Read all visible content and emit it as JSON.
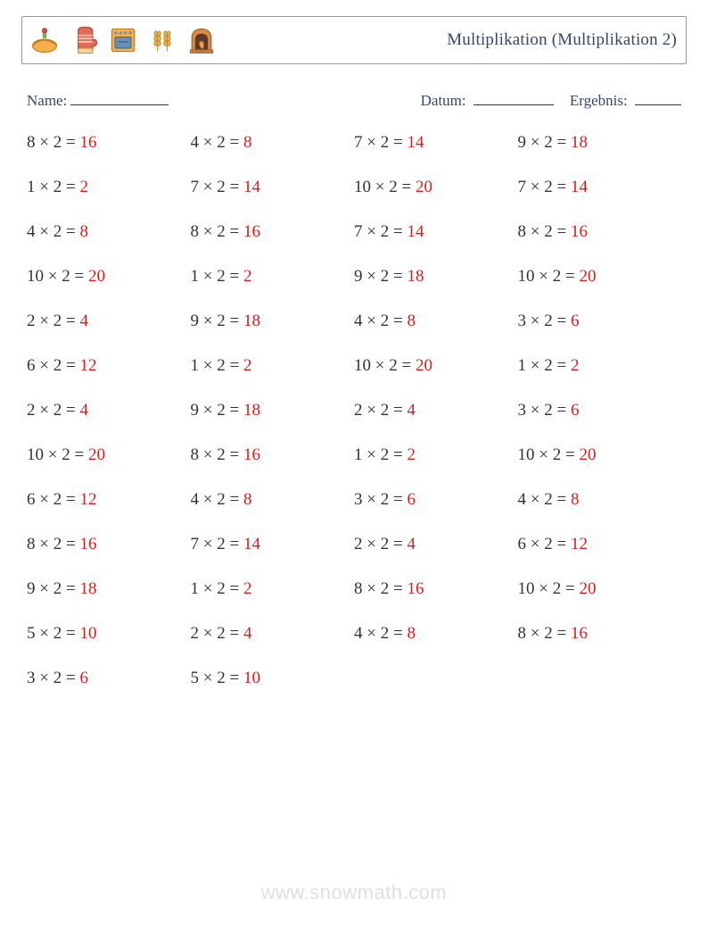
{
  "title": "Multiplikation (Multiplikation 2)",
  "labels": {
    "name": "Name:",
    "date": "Datum:",
    "result": "Ergebnis:"
  },
  "underline_widths": {
    "name": 110,
    "date": 90,
    "result": 52
  },
  "colors": {
    "text": "#333333",
    "title_text": "#324a67",
    "answer": "#d21f1f",
    "border": "#999999",
    "watermark": "rgba(120,120,120,0.24)"
  },
  "font_sizes": {
    "title": 19,
    "meta": 17,
    "problem": 19,
    "watermark": 22
  },
  "icons": [
    "pie-icon",
    "mitt-icon",
    "oven-icon",
    "wheat-icon",
    "fireplace-icon"
  ],
  "grid": {
    "columns": 4,
    "rows": 13,
    "row_gap": 28
  },
  "watermark": "www.snowmath.com",
  "problems": [
    {
      "a": 8,
      "b": 2,
      "ans": 16
    },
    {
      "a": 4,
      "b": 2,
      "ans": 8
    },
    {
      "a": 7,
      "b": 2,
      "ans": 14
    },
    {
      "a": 9,
      "b": 2,
      "ans": 18
    },
    {
      "a": 1,
      "b": 2,
      "ans": 2
    },
    {
      "a": 7,
      "b": 2,
      "ans": 14
    },
    {
      "a": 10,
      "b": 2,
      "ans": 20
    },
    {
      "a": 7,
      "b": 2,
      "ans": 14
    },
    {
      "a": 4,
      "b": 2,
      "ans": 8
    },
    {
      "a": 8,
      "b": 2,
      "ans": 16
    },
    {
      "a": 7,
      "b": 2,
      "ans": 14
    },
    {
      "a": 8,
      "b": 2,
      "ans": 16
    },
    {
      "a": 10,
      "b": 2,
      "ans": 20
    },
    {
      "a": 1,
      "b": 2,
      "ans": 2
    },
    {
      "a": 9,
      "b": 2,
      "ans": 18
    },
    {
      "a": 10,
      "b": 2,
      "ans": 20
    },
    {
      "a": 2,
      "b": 2,
      "ans": 4
    },
    {
      "a": 9,
      "b": 2,
      "ans": 18
    },
    {
      "a": 4,
      "b": 2,
      "ans": 8
    },
    {
      "a": 3,
      "b": 2,
      "ans": 6
    },
    {
      "a": 6,
      "b": 2,
      "ans": 12
    },
    {
      "a": 1,
      "b": 2,
      "ans": 2
    },
    {
      "a": 10,
      "b": 2,
      "ans": 20
    },
    {
      "a": 1,
      "b": 2,
      "ans": 2
    },
    {
      "a": 2,
      "b": 2,
      "ans": 4
    },
    {
      "a": 9,
      "b": 2,
      "ans": 18
    },
    {
      "a": 2,
      "b": 2,
      "ans": 4
    },
    {
      "a": 3,
      "b": 2,
      "ans": 6
    },
    {
      "a": 10,
      "b": 2,
      "ans": 20
    },
    {
      "a": 8,
      "b": 2,
      "ans": 16
    },
    {
      "a": 1,
      "b": 2,
      "ans": 2
    },
    {
      "a": 10,
      "b": 2,
      "ans": 20
    },
    {
      "a": 6,
      "b": 2,
      "ans": 12
    },
    {
      "a": 4,
      "b": 2,
      "ans": 8
    },
    {
      "a": 3,
      "b": 2,
      "ans": 6
    },
    {
      "a": 4,
      "b": 2,
      "ans": 8
    },
    {
      "a": 8,
      "b": 2,
      "ans": 16
    },
    {
      "a": 7,
      "b": 2,
      "ans": 14
    },
    {
      "a": 2,
      "b": 2,
      "ans": 4
    },
    {
      "a": 6,
      "b": 2,
      "ans": 12
    },
    {
      "a": 9,
      "b": 2,
      "ans": 18
    },
    {
      "a": 1,
      "b": 2,
      "ans": 2
    },
    {
      "a": 8,
      "b": 2,
      "ans": 16
    },
    {
      "a": 10,
      "b": 2,
      "ans": 20
    },
    {
      "a": 5,
      "b": 2,
      "ans": 10
    },
    {
      "a": 2,
      "b": 2,
      "ans": 4
    },
    {
      "a": 4,
      "b": 2,
      "ans": 8
    },
    {
      "a": 8,
      "b": 2,
      "ans": 16
    },
    {
      "a": 3,
      "b": 2,
      "ans": 6
    },
    {
      "a": 5,
      "b": 2,
      "ans": 10
    }
  ]
}
